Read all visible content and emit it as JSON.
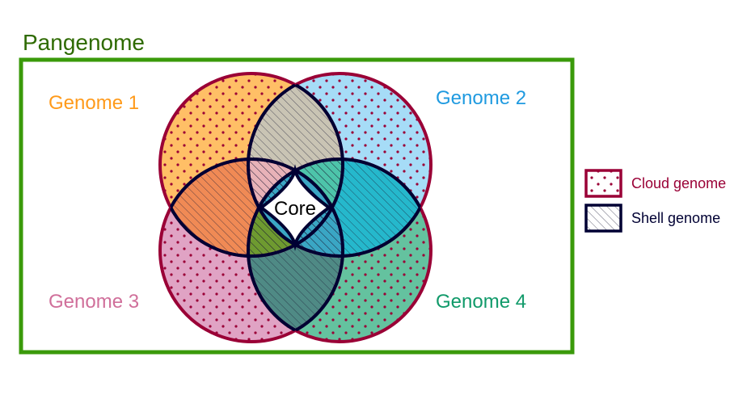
{
  "title": "Pangenome",
  "genomes": [
    {
      "label": "Genome 1",
      "color": "#ffbf66",
      "text_color": "#ff9a1a"
    },
    {
      "label": "Genome 2",
      "color": "#a6dcf7",
      "text_color": "#1f9ae0"
    },
    {
      "label": "Genome 3",
      "color": "#e0a3c4",
      "text_color": "#d06f9a"
    },
    {
      "label": "Genome 4",
      "color": "#64c29f",
      "text_color": "#119a6a"
    }
  ],
  "core_label": "Core",
  "legend": {
    "cloud_label": "Cloud genome",
    "shell_label": "Shell genome",
    "cloud_color": "#9a0036",
    "shell_color": "#000033"
  },
  "colors": {
    "frame": "#3a9a0a",
    "title": "#2e6a00",
    "outline": "#9a0036",
    "shell_outline": "#000033",
    "lens_top": "#c9c4b4",
    "lens_left": "#f08a55",
    "lens_right": "#25b8cc",
    "lens_bottom": "#4f8a85",
    "center_pink": "#e8b2b8",
    "center_teal": "#4dc4aa",
    "center_olive": "#6e9a30",
    "center_blue": "#3aa6c4"
  }
}
